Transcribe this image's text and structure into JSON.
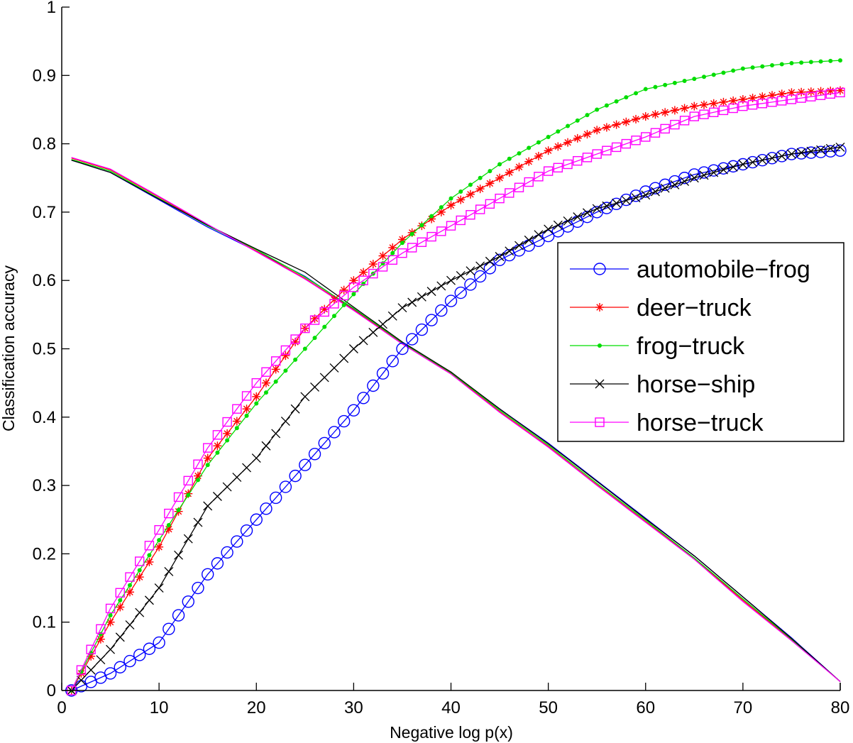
{
  "chart_data": {
    "type": "line",
    "title": "",
    "xlabel": "Negative log p(x)",
    "ylabel": "Classification accuracy",
    "xlim": [
      0,
      80
    ],
    "ylim": [
      0,
      1
    ],
    "xticks": [
      0,
      10,
      20,
      30,
      40,
      50,
      60,
      70,
      80
    ],
    "yticks": [
      0,
      0.1,
      0.2,
      0.3,
      0.4,
      0.5,
      0.6,
      0.7,
      0.8,
      0.9,
      1
    ],
    "ytick_labels": [
      "0",
      "0.1",
      "0.2",
      "0.3",
      "0.4",
      "0.5",
      "0.6",
      "0.7",
      "0.8",
      "0.9",
      "1"
    ],
    "grid": false,
    "legend_position": "center-right",
    "x": [
      1,
      5,
      10,
      15,
      20,
      25,
      30,
      35,
      40,
      45,
      50,
      55,
      60,
      65,
      70,
      75,
      80
    ],
    "series": [
      {
        "name": "automobile−frog",
        "color": "#0000ff",
        "marker": "circle",
        "values": [
          0,
          0.025,
          0.07,
          0.17,
          0.25,
          0.33,
          0.41,
          0.5,
          0.57,
          0.63,
          0.665,
          0.7,
          0.73,
          0.755,
          0.77,
          0.785,
          0.79
        ],
        "descending": [
          0.776,
          0.758,
          0.718,
          0.678,
          0.643,
          0.606,
          0.558,
          0.508,
          0.465,
          0.412,
          0.362,
          0.307,
          0.252,
          0.197,
          0.137,
          0.077,
          0.013
        ]
      },
      {
        "name": "deer−truck",
        "color": "#ff0000",
        "marker": "asterisk",
        "values": [
          0,
          0.1,
          0.21,
          0.34,
          0.43,
          0.53,
          0.6,
          0.66,
          0.71,
          0.75,
          0.79,
          0.82,
          0.84,
          0.855,
          0.865,
          0.875,
          0.878
        ],
        "descending": [
          0.779,
          0.762,
          0.722,
          0.681,
          0.643,
          0.603,
          0.557,
          0.508,
          0.464,
          0.408,
          0.357,
          0.301,
          0.247,
          0.193,
          0.132,
          0.074,
          0.013
        ]
      },
      {
        "name": "frog−truck",
        "color": "#00dd00",
        "marker": "dot",
        "values": [
          0,
          0.11,
          0.22,
          0.33,
          0.42,
          0.5,
          0.58,
          0.655,
          0.72,
          0.77,
          0.81,
          0.85,
          0.88,
          0.895,
          0.91,
          0.918,
          0.922
        ],
        "descending": [
          0.777,
          0.76,
          0.72,
          0.68,
          0.645,
          0.605,
          0.559,
          0.509,
          0.465,
          0.41,
          0.359,
          0.303,
          0.249,
          0.194,
          0.134,
          0.075,
          0.013
        ]
      },
      {
        "name": "horse−ship",
        "color": "#000000",
        "marker": "x",
        "values": [
          0,
          0.06,
          0.15,
          0.27,
          0.34,
          0.43,
          0.5,
          0.56,
          0.6,
          0.635,
          0.675,
          0.705,
          0.725,
          0.75,
          0.77,
          0.785,
          0.795
        ],
        "descending": [
          0.776,
          0.758,
          0.719,
          0.681,
          0.646,
          0.612,
          0.561,
          0.51,
          0.466,
          0.412,
          0.361,
          0.306,
          0.251,
          0.197,
          0.137,
          0.076,
          0.013
        ]
      },
      {
        "name": "horse−truck",
        "color": "#ff00ff",
        "marker": "square",
        "values": [
          0,
          0.12,
          0.235,
          0.355,
          0.45,
          0.53,
          0.59,
          0.64,
          0.68,
          0.72,
          0.76,
          0.785,
          0.81,
          0.84,
          0.855,
          0.865,
          0.875
        ],
        "descending": [
          0.78,
          0.763,
          0.723,
          0.682,
          0.642,
          0.602,
          0.556,
          0.507,
          0.463,
          0.407,
          0.356,
          0.3,
          0.246,
          0.192,
          0.13,
          0.073,
          0.013
        ]
      }
    ]
  },
  "legend": {
    "items": [
      {
        "label": "automobile−frog"
      },
      {
        "label": "deer−truck"
      },
      {
        "label": "frog−truck"
      },
      {
        "label": "horse−ship"
      },
      {
        "label": "horse−truck"
      }
    ]
  }
}
